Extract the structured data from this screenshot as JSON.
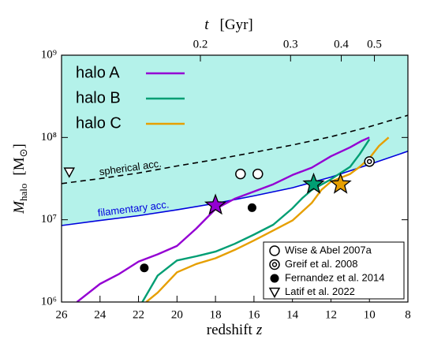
{
  "chart_data": {
    "type": "line",
    "xlabel": {
      "text": "redshift",
      "symbol": "z"
    },
    "x2label": {
      "symbol": "t",
      "unit": "[Gyr]"
    },
    "ylabel": {
      "symbol": "M",
      "subscript": "halo",
      "unit_open": "[M",
      "unit_sub": "⊙",
      "unit_close": "]"
    },
    "xlim": [
      26,
      8
    ],
    "xticks": [
      26,
      24,
      22,
      20,
      18,
      16,
      14,
      12,
      10,
      8
    ],
    "x2ticks": [
      0.2,
      0.3,
      0.4,
      0.5
    ],
    "ylim": [
      1000000,
      1000000000
    ],
    "yscale": "log",
    "yticks": [
      {
        "value": 1000000,
        "label": "10⁶"
      },
      {
        "value": 10000000,
        "label": "10⁷"
      },
      {
        "value": 100000000,
        "label": "10⁸"
      },
      {
        "value": 1000000000,
        "label": "10⁹"
      }
    ],
    "shade_color": "#b4f2ea",
    "series": [
      {
        "name": "halo A",
        "color": "#9400d3",
        "x": [
          25.2,
          24,
          23,
          22,
          21,
          20,
          19,
          18,
          17,
          16,
          15,
          14,
          13,
          12,
          11,
          10.4,
          10
        ],
        "values": [
          1000000,
          1660000,
          2200000,
          3100000,
          3800000,
          4800000,
          7800000,
          13500000,
          18000000,
          22000000,
          27000000,
          35000000,
          43000000,
          59000000,
          76000000,
          91000000,
          100000000
        ],
        "star": {
          "x": 18.0,
          "value": 15000000
        }
      },
      {
        "name": "halo B",
        "color": "#009e73",
        "x": [
          21.8,
          21,
          20,
          19,
          18,
          17,
          16,
          15,
          14,
          13.5,
          13,
          12,
          11,
          10.5,
          10
        ],
        "values": [
          1000000,
          2100000,
          3200000,
          3600000,
          4100000,
          5100000,
          6600000,
          8700000,
          13800000,
          18200000,
          23000000,
          31000000,
          44000000,
          63000000,
          95000000
        ],
        "star": {
          "x": 12.9,
          "value": 27000000
        }
      },
      {
        "name": "halo C",
        "color": "#e69f00",
        "x": [
          21.6,
          21,
          20,
          19,
          18,
          17,
          16,
          15,
          14,
          13,
          12.5,
          12,
          11,
          10.5,
          10,
          9.5,
          9
        ],
        "values": [
          1000000,
          1300000,
          2300000,
          2900000,
          3400000,
          4300000,
          5600000,
          7400000,
          9800000,
          16000000,
          23000000,
          29000000,
          36000000,
          44000000,
          56000000,
          79000000,
          100000000
        ],
        "star": {
          "x": 11.5,
          "value": 27000000
        }
      }
    ],
    "thresholds": [
      {
        "name": "spherical acc.",
        "color": "#000000",
        "dashed": true,
        "x": [
          26,
          24,
          22,
          20,
          18,
          16,
          14,
          12,
          10,
          8
        ],
        "values": [
          27500000,
          31600000,
          37000000,
          45000000,
          54000000,
          66000000,
          81000000,
          102000000,
          135000000,
          186000000
        ]
      },
      {
        "name": "filamentary acc.",
        "color": "#0000dd",
        "dashed": false,
        "x": [
          26,
          24,
          22,
          20,
          18,
          16,
          14,
          12,
          10,
          8
        ],
        "values": [
          8500000,
          9800000,
          11200000,
          13200000,
          15800000,
          19500000,
          24500000,
          33000000,
          47000000,
          68000000
        ]
      }
    ],
    "observations": [
      {
        "name": "Wise & Abel 2007a",
        "marker": "circle",
        "x": [
          16.7,
          15.8
        ],
        "values": [
          36000000,
          36000000
        ]
      },
      {
        "name": "Greif et al. 2008",
        "marker": "double-circle",
        "x": [
          10.0
        ],
        "values": [
          51000000
        ]
      },
      {
        "name": "Fernandez et al. 2014",
        "marker": "dot",
        "x": [
          16.1,
          21.7
        ],
        "values": [
          14000000,
          2600000
        ]
      },
      {
        "name": "Latif et al. 2022",
        "marker": "triangle",
        "x": [
          25.6
        ],
        "values": [
          38000000
        ]
      }
    ]
  }
}
